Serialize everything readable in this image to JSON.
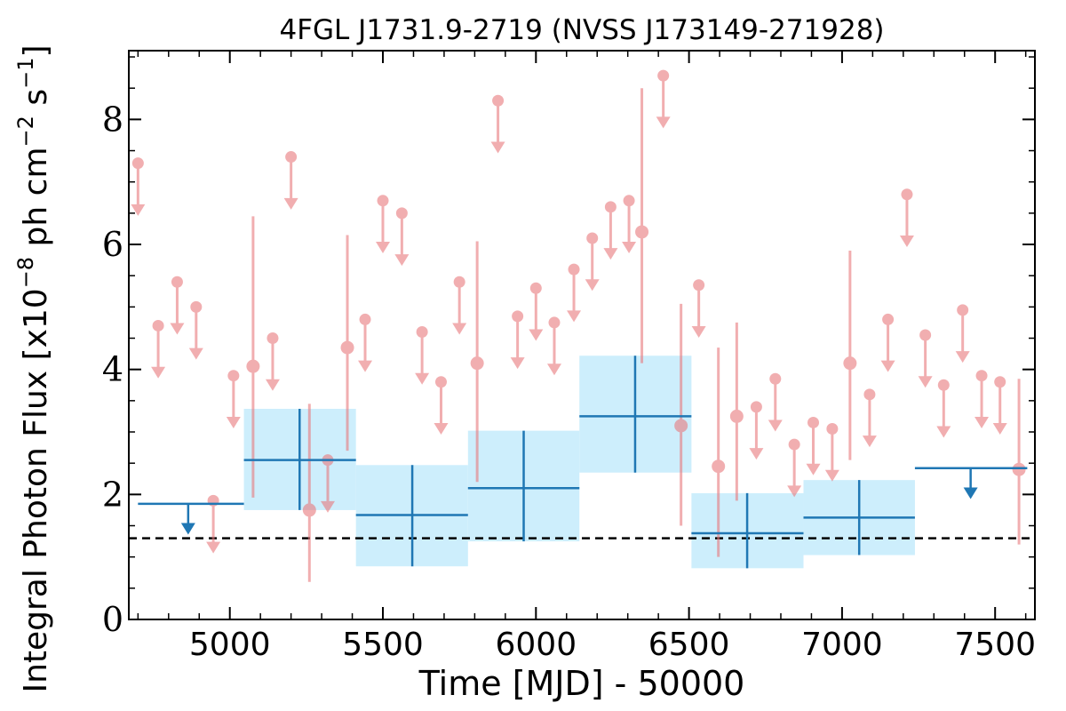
{
  "chart_data": {
    "type": "scatter",
    "title": "4FGL J1731.9-2719 (NVSS J173149-271928)",
    "xlabel": "Time [MJD] - 50000",
    "ylabel": "Integral Photon Flux [x10",
    "ylabel_exp1": "−8",
    "ylabel_mid": " ph cm",
    "ylabel_exp2": "−2",
    "ylabel_mid2": " s",
    "ylabel_exp3": "−1",
    "ylabel_end": "]",
    "xlim": [
      4670,
      7630
    ],
    "ylim": [
      0,
      9.1
    ],
    "xticks": [
      5000,
      5500,
      6000,
      6500,
      7000,
      7500
    ],
    "yticks": [
      0,
      2,
      4,
      6,
      8
    ],
    "reference_level": 1.3,
    "colors": {
      "monthly": "#e8797d",
      "yearly": "#1f77b4",
      "yearly_band": "#cdeefc",
      "reference": "#000000"
    },
    "series": [
      {
        "kind": "monthly_upper_limits",
        "x": [
          4700,
          4766,
          4828,
          4890,
          4946,
          5012,
          5140,
          5200,
          5320,
          5442,
          5500,
          5562,
          5628,
          5690,
          5750,
          5876,
          5940,
          6000,
          6060,
          6124,
          6184,
          6244,
          6304,
          6416,
          6532,
          6720,
          6782,
          6844,
          6906,
          6968,
          7090,
          7150,
          7212,
          7272,
          7332,
          7394,
          7456,
          7516
        ],
        "y": [
          7.3,
          4.7,
          5.4,
          5.0,
          1.9,
          3.9,
          4.5,
          7.4,
          2.55,
          4.8,
          6.7,
          6.5,
          4.6,
          3.8,
          5.4,
          8.3,
          4.85,
          5.3,
          4.75,
          5.6,
          6.1,
          6.6,
          6.7,
          8.7,
          5.35,
          3.4,
          3.85,
          2.8,
          3.15,
          3.05,
          3.6,
          4.8,
          6.8,
          4.55,
          3.75,
          4.95,
          3.9,
          3.8
        ]
      },
      {
        "kind": "monthly_detections",
        "x": [
          5076,
          5260,
          5384,
          5808,
          6346,
          6474,
          6596,
          6656,
          7026,
          7578
        ],
        "y": [
          4.05,
          1.75,
          4.35,
          4.1,
          6.2,
          3.1,
          2.45,
          3.25,
          4.1,
          2.4
        ],
        "y_low": [
          1.95,
          0.6,
          2.7,
          2.2,
          4.1,
          1.5,
          1.0,
          1.9,
          2.55,
          1.2
        ],
        "y_high": [
          6.45,
          3.45,
          6.15,
          6.05,
          8.5,
          5.05,
          4.35,
          4.75,
          5.9,
          3.85
        ]
      },
      {
        "kind": "yearly_detections",
        "x": [
          5228,
          5596,
          5960,
          6324,
          6690,
          7056
        ],
        "x_low": [
          5046,
          5412,
          5778,
          6142,
          6508,
          6874
        ],
        "x_high": [
          5412,
          5778,
          6142,
          6508,
          6874,
          7238
        ],
        "y": [
          2.55,
          1.67,
          2.1,
          3.25,
          1.38,
          1.63
        ],
        "y_low": [
          1.75,
          0.85,
          1.25,
          2.35,
          0.82,
          1.03
        ],
        "y_high": [
          3.37,
          2.47,
          3.02,
          4.22,
          2.02,
          2.23
        ]
      },
      {
        "kind": "yearly_upper_limits",
        "x": [
          4864,
          7420
        ],
        "x_low": [
          4700,
          7238
        ],
        "x_high": [
          5046,
          7605
        ],
        "y": [
          1.85,
          2.42
        ]
      }
    ]
  }
}
